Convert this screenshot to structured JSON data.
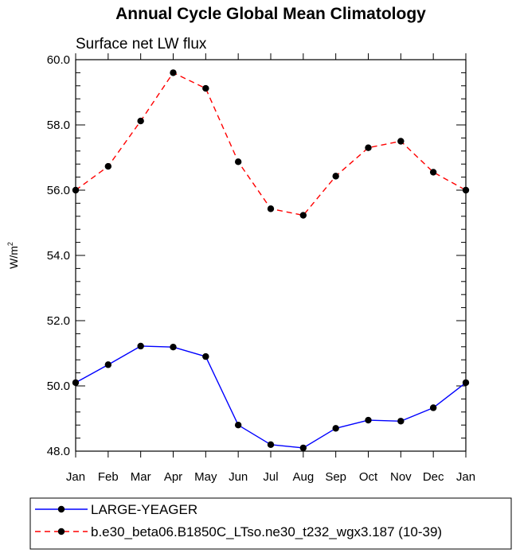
{
  "chart_data": {
    "type": "line",
    "title": "Annual Cycle Global Mean Climatology",
    "subtitle": "Surface net LW flux",
    "xlabel": "",
    "ylabel": "W/m",
    "ylabel_superscript": "2",
    "categories": [
      "Jan",
      "Feb",
      "Mar",
      "Apr",
      "May",
      "Jun",
      "Jul",
      "Aug",
      "Sep",
      "Oct",
      "Nov",
      "Dec",
      "Jan"
    ],
    "ylim": [
      48.0,
      60.0
    ],
    "yticks": [
      48.0,
      50.0,
      52.0,
      54.0,
      56.0,
      58.0,
      60.0
    ],
    "ytick_labels": [
      "48.0",
      "50.0",
      "52.0",
      "54.0",
      "56.0",
      "58.0",
      "60.0"
    ],
    "y_minor_step": 0.4,
    "grid": false,
    "legend_position": "bottom",
    "series": [
      {
        "name": "LARGE-YEAGER",
        "color": "#0000ff",
        "style": "solid",
        "marker": "filled-circle",
        "values": [
          50.1,
          50.65,
          51.22,
          51.19,
          50.9,
          48.8,
          48.2,
          48.1,
          48.7,
          48.95,
          48.92,
          49.33,
          50.1
        ]
      },
      {
        "name": "b.e30_beta06.B1850C_LTso.ne30_t232_wgx3.187 (10-39)",
        "color": "#ff0000",
        "style": "dashed",
        "marker": "filled-circle",
        "values": [
          56.0,
          56.73,
          58.12,
          59.6,
          59.12,
          56.87,
          55.43,
          55.23,
          56.43,
          57.3,
          57.5,
          56.55,
          56.0
        ]
      }
    ]
  }
}
